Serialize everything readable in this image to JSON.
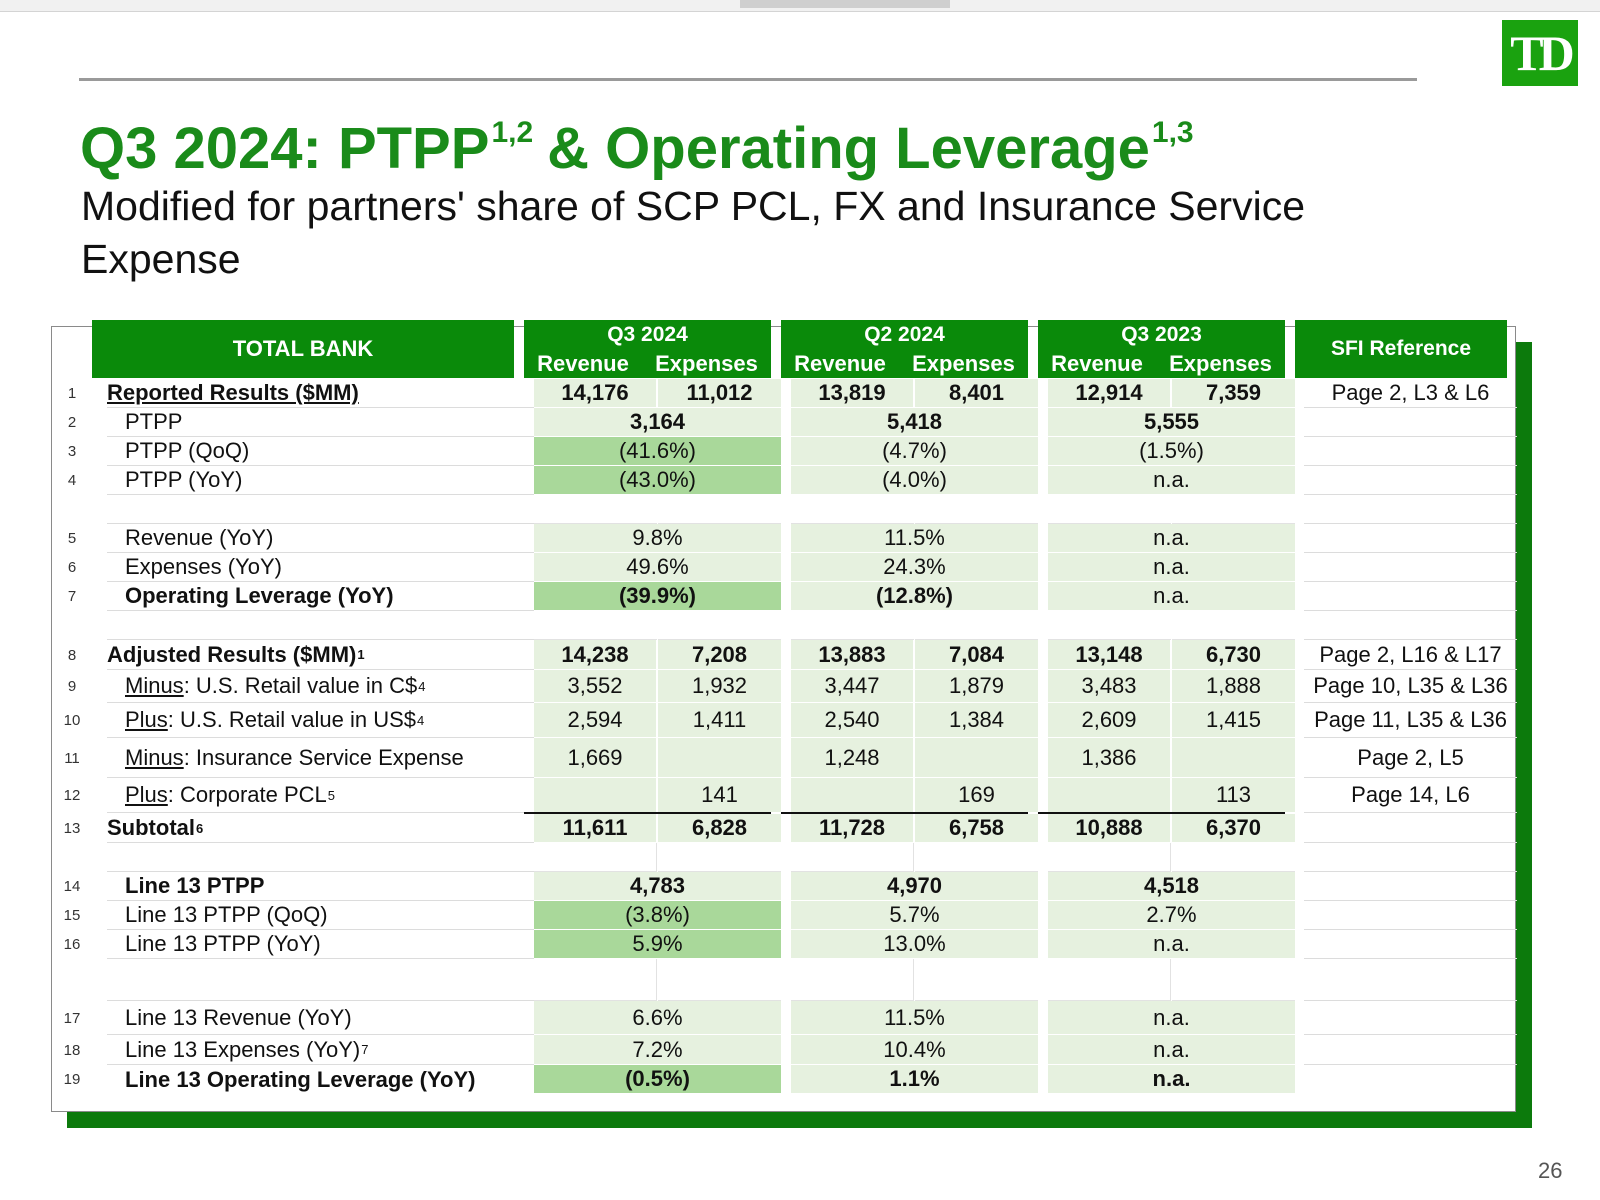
{
  "logo": {
    "text": "TD",
    "color": "#1aa20f"
  },
  "title": {
    "part1": "Q3 2024: PTPP",
    "sup1": "1,2",
    "part2": "& Operating Leverage",
    "sup2": "1,3",
    "color": "#1a8b1a"
  },
  "subtitle": "Modified for partners' share of SCP PCL, FX and Insurance Service Expense",
  "header": {
    "total_bank": "TOTAL BANK",
    "periods": [
      "Q3 2024",
      "Q2 2024",
      "Q3 2023"
    ],
    "revenue": "Revenue",
    "expenses": "Expenses",
    "sfi_reference": "SFI Reference",
    "color": "#0a8a0a"
  },
  "rows": {
    "r1": {
      "num": "1",
      "label": "Reported Results ($MM)",
      "v": [
        "14,176",
        "11,012",
        "13,819",
        "8,401",
        "12,914",
        "7,359"
      ],
      "ref": "Page 2, L3 & L6"
    },
    "r2": {
      "num": "2",
      "label": "PTPP",
      "v": [
        "3,164",
        "5,418",
        "5,555"
      ]
    },
    "r3": {
      "num": "3",
      "label": "PTPP (QoQ)",
      "v": [
        "(41.6%)",
        "(4.7%)",
        "(1.5%)"
      ]
    },
    "r4": {
      "num": "4",
      "label": "PTPP (YoY)",
      "v": [
        "(43.0%)",
        "(4.0%)",
        "n.a."
      ]
    },
    "r5": {
      "num": "5",
      "label": "Revenue (YoY)",
      "v": [
        "9.8%",
        "11.5%",
        "n.a."
      ]
    },
    "r6": {
      "num": "6",
      "label": "Expenses (YoY)",
      "v": [
        "49.6%",
        "24.3%",
        "n.a."
      ]
    },
    "r7": {
      "num": "7",
      "label": "Operating Leverage (YoY)",
      "v": [
        "(39.9%)",
        "(12.8%)",
        "n.a."
      ]
    },
    "r8": {
      "num": "8",
      "label": "Adjusted Results ($MM)",
      "sup": "1",
      "v": [
        "14,238",
        "7,208",
        "13,883",
        "7,084",
        "13,148",
        "6,730"
      ],
      "ref": "Page 2, L16 & L17"
    },
    "r9": {
      "num": "9",
      "label_u": "Minus",
      "label_rest": ": U.S. Retail value in C$",
      "sup": "4",
      "v": [
        "3,552",
        "1,932",
        "3,447",
        "1,879",
        "3,483",
        "1,888"
      ],
      "ref": "Page 10, L35 & L36"
    },
    "r10": {
      "num": "10",
      "label_u": "Plus",
      "label_rest": ": U.S. Retail value in US$",
      "sup": "4",
      "v": [
        "2,594",
        "1,411",
        "2,540",
        "1,384",
        "2,609",
        "1,415"
      ],
      "ref": "Page 11, L35 & L36"
    },
    "r11": {
      "num": "11",
      "label_u": "Minus",
      "label_rest": ": Insurance Service Expense",
      "v": [
        "1,669",
        "1,248",
        "1,386"
      ],
      "ref": "Page 2, L5"
    },
    "r12": {
      "num": "12",
      "label_u": "Plus",
      "label_rest": ": Corporate PCL",
      "sup": "5",
      "v": [
        "141",
        "169",
        "113"
      ],
      "ref": "Page 14, L6"
    },
    "r13": {
      "num": "13",
      "label": "Subtotal",
      "sup": "6",
      "v": [
        "11,611",
        "6,828",
        "11,728",
        "6,758",
        "10,888",
        "6,370"
      ]
    },
    "r14": {
      "num": "14",
      "label": "Line 13 PTPP",
      "v": [
        "4,783",
        "4,970",
        "4,518"
      ]
    },
    "r15": {
      "num": "15",
      "label": "Line 13 PTPP (QoQ)",
      "v": [
        "(3.8%)",
        "5.7%",
        "2.7%"
      ]
    },
    "r16": {
      "num": "16",
      "label": "Line 13 PTPP (YoY)",
      "v": [
        "5.9%",
        "13.0%",
        "n.a."
      ]
    },
    "r17": {
      "num": "17",
      "label": "Line 13 Revenue (YoY)",
      "v": [
        "6.6%",
        "11.5%",
        "n.a."
      ]
    },
    "r18": {
      "num": "18",
      "label": "Line 13 Expenses (YoY)",
      "sup": "7",
      "v": [
        "7.2%",
        "10.4%",
        "n.a."
      ]
    },
    "r19": {
      "num": "19",
      "label": "Line 13 Operating Leverage (YoY)",
      "v": [
        "(0.5%)",
        "1.1%",
        "n.a."
      ]
    }
  },
  "colors": {
    "light_green_fill": "#e6f1df",
    "highlight_green": "#a9d89a",
    "shadow": "#0c7a0c"
  },
  "page_number": "26"
}
